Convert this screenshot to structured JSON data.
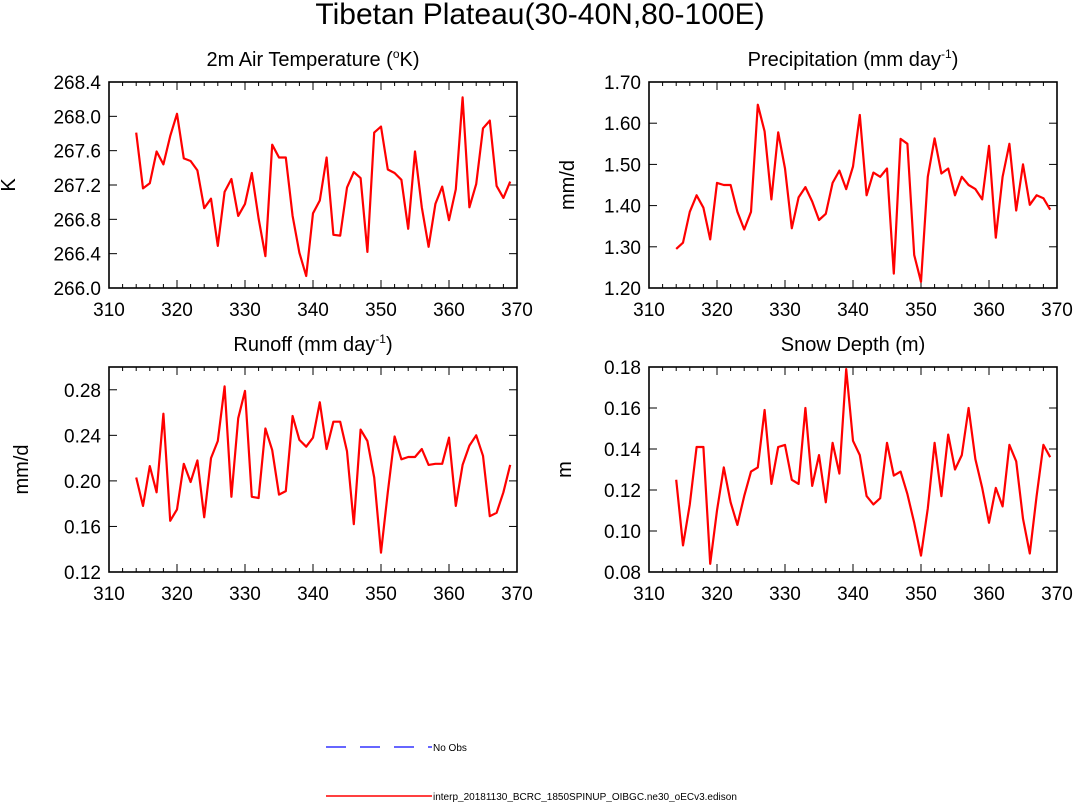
{
  "title": "Tibetan Plateau(30-40N,80-100E)",
  "chart_data": [
    {
      "type": "line",
      "title_main": "2m Air Temperature (",
      "title_sup": "o",
      "title_tail": "K)",
      "ylabel": "K",
      "xlim": [
        310,
        370
      ],
      "ylim": [
        266.0,
        268.4
      ],
      "xticks": [
        "310",
        "320",
        "330",
        "340",
        "350",
        "360",
        "370"
      ],
      "yticks": [
        "266.0",
        "266.4",
        "266.8",
        "267.2",
        "267.6",
        "268.0",
        "268.4"
      ],
      "x": [
        314,
        315,
        316,
        317,
        318,
        319,
        320,
        321,
        322,
        323,
        324,
        325,
        326,
        327,
        328,
        329,
        330,
        331,
        332,
        333,
        334,
        335,
        336,
        337,
        338,
        339,
        340,
        341,
        342,
        343,
        344,
        345,
        346,
        347,
        348,
        349,
        350,
        351,
        352,
        353,
        354,
        355,
        356,
        357,
        358,
        359,
        360,
        361,
        362,
        363,
        364,
        365,
        366,
        367,
        368,
        369
      ],
      "y": [
        267.81,
        267.16,
        267.22,
        267.59,
        267.44,
        267.77,
        268.03,
        267.51,
        267.48,
        267.37,
        266.93,
        267.04,
        266.49,
        267.12,
        267.27,
        266.84,
        266.98,
        267.34,
        266.81,
        266.37,
        267.67,
        267.52,
        267.52,
        266.84,
        266.41,
        266.14,
        266.87,
        267.02,
        267.52,
        266.62,
        266.61,
        267.17,
        267.35,
        267.28,
        266.42,
        267.81,
        267.88,
        267.38,
        267.34,
        267.26,
        266.69,
        267.59,
        266.94,
        266.48,
        266.98,
        267.18,
        266.79,
        267.15,
        268.22,
        266.94,
        267.21,
        267.86,
        267.95,
        267.19,
        267.05,
        267.24
      ],
      "series_name": "interp_20181130_BCRC_1850SPINUP_OIBGC.ne30_oECv3.edison"
    },
    {
      "type": "line",
      "title_main": "Precipitation (mm day",
      "title_sup": "-1",
      "title_tail": ")",
      "ylabel": "mm/d",
      "xlim": [
        310,
        370
      ],
      "ylim": [
        1.2,
        1.7
      ],
      "xticks": [
        "310",
        "320",
        "330",
        "340",
        "350",
        "360",
        "370"
      ],
      "yticks": [
        "1.20",
        "1.30",
        "1.40",
        "1.50",
        "1.60",
        "1.70"
      ],
      "x": [
        314,
        315,
        316,
        317,
        318,
        319,
        320,
        321,
        322,
        323,
        324,
        325,
        326,
        327,
        328,
        329,
        330,
        331,
        332,
        333,
        334,
        335,
        336,
        337,
        338,
        339,
        340,
        341,
        342,
        343,
        344,
        345,
        346,
        347,
        348,
        349,
        350,
        351,
        352,
        353,
        354,
        355,
        356,
        357,
        358,
        359,
        360,
        361,
        362,
        363,
        364,
        365,
        366,
        367,
        368,
        369
      ],
      "y": [
        1.295,
        1.31,
        1.385,
        1.425,
        1.395,
        1.318,
        1.455,
        1.45,
        1.45,
        1.385,
        1.342,
        1.385,
        1.645,
        1.58,
        1.415,
        1.578,
        1.49,
        1.345,
        1.42,
        1.445,
        1.41,
        1.365,
        1.38,
        1.455,
        1.485,
        1.44,
        1.495,
        1.62,
        1.425,
        1.48,
        1.47,
        1.49,
        1.235,
        1.562,
        1.55,
        1.28,
        1.215,
        1.47,
        1.563,
        1.478,
        1.49,
        1.425,
        1.47,
        1.45,
        1.44,
        1.415,
        1.545,
        1.322,
        1.47,
        1.55,
        1.388,
        1.5,
        1.402,
        1.425,
        1.418,
        1.39
      ],
      "series_name": "interp_20181130_BCRC_1850SPINUP_OIBGC.ne30_oECv3.edison"
    },
    {
      "type": "line",
      "title_main": "Runoff (mm day",
      "title_sup": "-1",
      "title_tail": ")",
      "ylabel": "mm/d",
      "xlim": [
        310,
        370
      ],
      "ylim": [
        0.12,
        0.3
      ],
      "xticks": [
        "310",
        "320",
        "330",
        "340",
        "350",
        "360",
        "370"
      ],
      "yticks": [
        "0.12",
        "0.16",
        "0.20",
        "0.24",
        "0.28"
      ],
      "x": [
        314,
        315,
        316,
        317,
        318,
        319,
        320,
        321,
        322,
        323,
        324,
        325,
        326,
        327,
        328,
        329,
        330,
        331,
        332,
        333,
        334,
        335,
        336,
        337,
        338,
        339,
        340,
        341,
        342,
        343,
        344,
        345,
        346,
        347,
        348,
        349,
        350,
        351,
        352,
        353,
        354,
        355,
        356,
        357,
        358,
        359,
        360,
        361,
        362,
        363,
        364,
        365,
        366,
        367,
        368,
        369
      ],
      "y": [
        0.203,
        0.178,
        0.213,
        0.19,
        0.259,
        0.165,
        0.175,
        0.215,
        0.199,
        0.218,
        0.168,
        0.22,
        0.235,
        0.283,
        0.186,
        0.255,
        0.279,
        0.186,
        0.185,
        0.246,
        0.227,
        0.188,
        0.191,
        0.257,
        0.236,
        0.23,
        0.238,
        0.269,
        0.228,
        0.252,
        0.252,
        0.226,
        0.162,
        0.245,
        0.235,
        0.203,
        0.137,
        0.19,
        0.239,
        0.219,
        0.221,
        0.221,
        0.228,
        0.214,
        0.215,
        0.215,
        0.238,
        0.178,
        0.214,
        0.231,
        0.24,
        0.222,
        0.169,
        0.172,
        0.19,
        0.214
      ],
      "series_name": "interp_20181130_BCRC_1850SPINUP_OIBGC.ne30_oECv3.edison"
    },
    {
      "type": "line",
      "title_main": "Snow Depth (m)",
      "title_sup": "",
      "title_tail": "",
      "ylabel": "m",
      "xlim": [
        310,
        370
      ],
      "ylim": [
        0.08,
        0.18
      ],
      "xticks": [
        "310",
        "320",
        "330",
        "340",
        "350",
        "360",
        "370"
      ],
      "yticks": [
        "0.08",
        "0.10",
        "0.12",
        "0.14",
        "0.16",
        "0.18"
      ],
      "x": [
        314,
        315,
        316,
        317,
        318,
        319,
        320,
        321,
        322,
        323,
        324,
        325,
        326,
        327,
        328,
        329,
        330,
        331,
        332,
        333,
        334,
        335,
        336,
        337,
        338,
        339,
        340,
        341,
        342,
        343,
        344,
        345,
        346,
        347,
        348,
        349,
        350,
        351,
        352,
        353,
        354,
        355,
        356,
        357,
        358,
        359,
        360,
        361,
        362,
        363,
        364,
        365,
        366,
        367,
        368,
        369
      ],
      "y": [
        0.125,
        0.093,
        0.113,
        0.141,
        0.141,
        0.084,
        0.11,
        0.131,
        0.114,
        0.103,
        0.117,
        0.129,
        0.131,
        0.159,
        0.123,
        0.141,
        0.142,
        0.125,
        0.123,
        0.16,
        0.122,
        0.137,
        0.114,
        0.143,
        0.128,
        0.179,
        0.144,
        0.137,
        0.117,
        0.113,
        0.116,
        0.143,
        0.127,
        0.129,
        0.118,
        0.104,
        0.088,
        0.111,
        0.143,
        0.117,
        0.147,
        0.13,
        0.137,
        0.16,
        0.135,
        0.121,
        0.104,
        0.121,
        0.112,
        0.142,
        0.134,
        0.106,
        0.089,
        0.117,
        0.142,
        0.136
      ],
      "series_name": "interp_20181130_BCRC_1850SPINUP_OIBGC.ne30_oECv3.edison"
    }
  ],
  "legend": [
    {
      "label": "No Obs",
      "color": "#3333ff",
      "style": "dashed"
    },
    {
      "label": "interp_20181130_BCRC_1850SPINUP_OIBGC.ne30_oECv3.edison",
      "color": "#ff0000",
      "style": "solid"
    }
  ],
  "colors": {
    "series": "#ff0000",
    "obs": "#3333ff",
    "axis": "#000000"
  }
}
